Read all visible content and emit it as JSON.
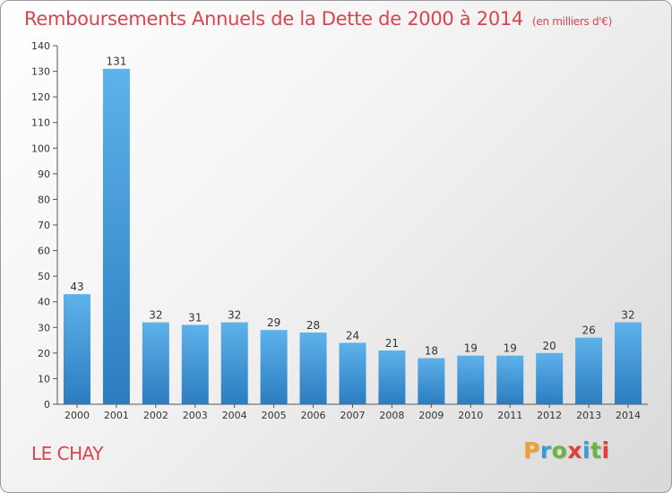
{
  "header": {
    "title": "Remboursements Annuels de la Dette de 2000 à 2014",
    "unit": "(en milliers d'€)"
  },
  "footer": {
    "place": "LE CHAY",
    "logo": "Proxiti",
    "logo_colors": [
      "#f0a030",
      "#3c9ad6",
      "#6cb33f",
      "#e0403c",
      "#3c9ad6",
      "#6cb33f",
      "#e0403c"
    ]
  },
  "chart_data": {
    "type": "bar",
    "categories": [
      "2000",
      "2001",
      "2002",
      "2003",
      "2004",
      "2005",
      "2006",
      "2007",
      "2008",
      "2009",
      "2010",
      "2011",
      "2012",
      "2013",
      "2014"
    ],
    "values": [
      43,
      131,
      32,
      31,
      32,
      29,
      28,
      24,
      21,
      18,
      19,
      19,
      20,
      26,
      32
    ],
    "title": "Remboursements Annuels de la Dette de 2000 à 2014",
    "ylim": [
      0,
      140
    ],
    "yticks": [
      0,
      10,
      20,
      30,
      40,
      50,
      60,
      70,
      80,
      90,
      100,
      110,
      120,
      130,
      140
    ],
    "grid": false,
    "bar_color": "#3c9ad6"
  }
}
